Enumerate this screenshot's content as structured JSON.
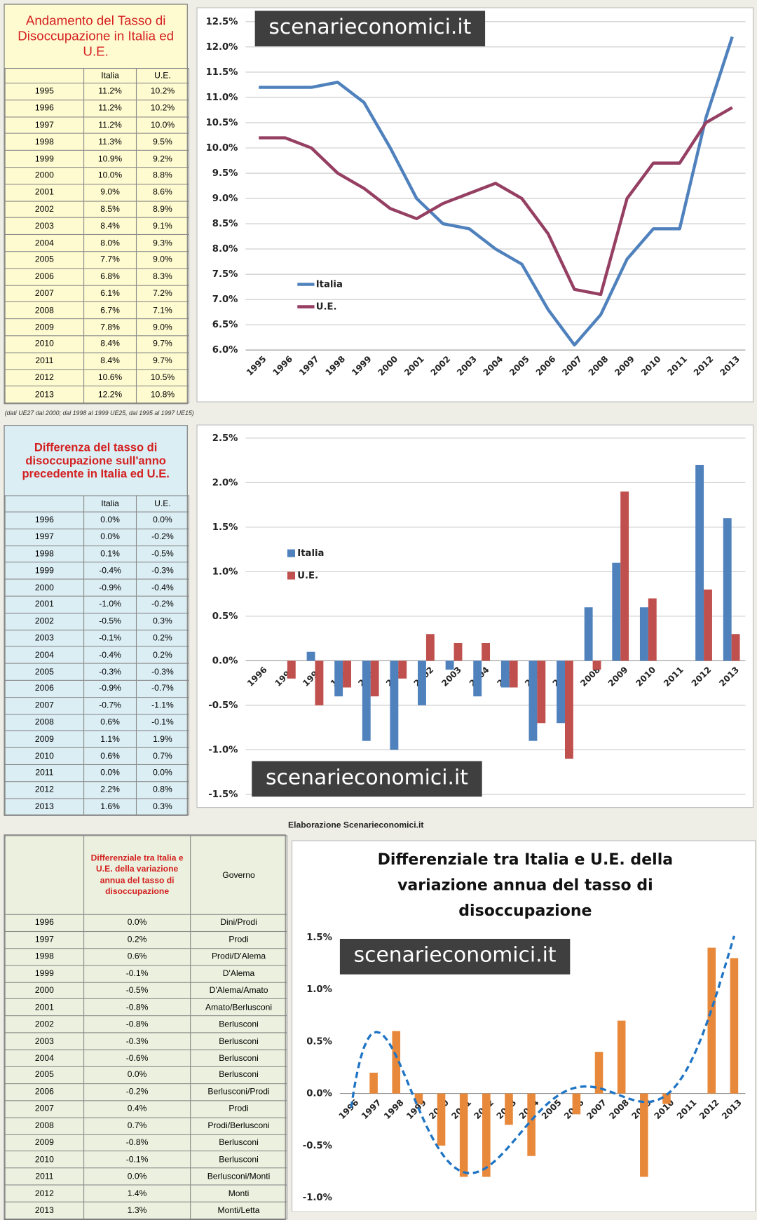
{
  "tables": [
    {
      "title": "Andamento del Tasso di Disoccupazione in Italia ed U.E.",
      "columns": [
        "Italia",
        "U.E."
      ],
      "rows": [
        [
          "1995",
          "11.2%",
          "10.2%"
        ],
        [
          "1996",
          "11.2%",
          "10.2%"
        ],
        [
          "1997",
          "11.2%",
          "10.0%"
        ],
        [
          "1998",
          "11.3%",
          "9.5%"
        ],
        [
          "1999",
          "10.9%",
          "9.2%"
        ],
        [
          "2000",
          "10.0%",
          "8.8%"
        ],
        [
          "2001",
          "9.0%",
          "8.6%"
        ],
        [
          "2002",
          "8.5%",
          "8.9%"
        ],
        [
          "2003",
          "8.4%",
          "9.1%"
        ],
        [
          "2004",
          "8.0%",
          "9.3%"
        ],
        [
          "2005",
          "7.7%",
          "9.0%"
        ],
        [
          "2006",
          "6.8%",
          "8.3%"
        ],
        [
          "2007",
          "6.1%",
          "7.2%"
        ],
        [
          "2008",
          "6.7%",
          "7.1%"
        ],
        [
          "2009",
          "7.8%",
          "9.0%"
        ],
        [
          "2010",
          "8.4%",
          "9.7%"
        ],
        [
          "2011",
          "8.4%",
          "9.7%"
        ],
        [
          "2012",
          "10.6%",
          "10.5%"
        ],
        [
          "2013",
          "12.2%",
          "10.8%"
        ]
      ]
    },
    {
      "title": "Differenza del tasso di disoccupazione sull'anno precedente in Italia ed U.E.",
      "columns": [
        "Italia",
        "U.E."
      ],
      "rows": [
        [
          "1996",
          "0.0%",
          "0.0%"
        ],
        [
          "1997",
          "0.0%",
          "-0.2%"
        ],
        [
          "1998",
          "0.1%",
          "-0.5%"
        ],
        [
          "1999",
          "-0.4%",
          "-0.3%"
        ],
        [
          "2000",
          "-0.9%",
          "-0.4%"
        ],
        [
          "2001",
          "-1.0%",
          "-0.2%"
        ],
        [
          "2002",
          "-0.5%",
          "0.3%"
        ],
        [
          "2003",
          "-0.1%",
          "0.2%"
        ],
        [
          "2004",
          "-0.4%",
          "0.2%"
        ],
        [
          "2005",
          "-0.3%",
          "-0.3%"
        ],
        [
          "2006",
          "-0.9%",
          "-0.7%"
        ],
        [
          "2007",
          "-0.7%",
          "-1.1%"
        ],
        [
          "2008",
          "0.6%",
          "-0.1%"
        ],
        [
          "2009",
          "1.1%",
          "1.9%"
        ],
        [
          "2010",
          "0.6%",
          "0.7%"
        ],
        [
          "2011",
          "0.0%",
          "0.0%"
        ],
        [
          "2012",
          "2.2%",
          "0.8%"
        ],
        [
          "2013",
          "1.6%",
          "0.3%"
        ]
      ]
    },
    {
      "columns": [
        "Differenziale tra Italia e U.E. della variazione annua del tasso di disoccupazione",
        "Governo"
      ],
      "rows": [
        [
          "1996",
          "0.0%",
          "Dini/Prodi"
        ],
        [
          "1997",
          "0.2%",
          "Prodi"
        ],
        [
          "1998",
          "0.6%",
          "Prodi/D'Alema"
        ],
        [
          "1999",
          "-0.1%",
          "D'Alema"
        ],
        [
          "2000",
          "-0.5%",
          "D'Alema/Amato"
        ],
        [
          "2001",
          "-0.8%",
          "Amato/Berlusconi"
        ],
        [
          "2002",
          "-0.8%",
          "Berlusconi"
        ],
        [
          "2003",
          "-0.3%",
          "Berlusconi"
        ],
        [
          "2004",
          "-0.6%",
          "Berlusconi"
        ],
        [
          "2005",
          "0.0%",
          "Berlusconi"
        ],
        [
          "2006",
          "-0.2%",
          "Berlusconi/Prodi"
        ],
        [
          "2007",
          "0.4%",
          "Prodi"
        ],
        [
          "2008",
          "0.7%",
          "Prodi/Berlusconi"
        ],
        [
          "2009",
          "-0.8%",
          "Berlusconi"
        ],
        [
          "2010",
          "-0.1%",
          "Berlusconi"
        ],
        [
          "2011",
          "0.0%",
          "Berlusconi/Monti"
        ],
        [
          "2012",
          "1.4%",
          "Monti"
        ],
        [
          "2013",
          "1.3%",
          "Monti/Letta"
        ]
      ]
    }
  ],
  "note": "(dati UE27 dal 2000; dal 1998 al 1999 UE25, dal 1995 al 1997 UE15)",
  "credit": "Elaborazione Scenarieconomici.it",
  "chart_data": [
    {
      "type": "line",
      "watermark": "scenarieconomici.it",
      "categories": [
        "1995",
        "1996",
        "1997",
        "1998",
        "1999",
        "2000",
        "2001",
        "2002",
        "2003",
        "2004",
        "2005",
        "2006",
        "2007",
        "2008",
        "2009",
        "2010",
        "2011",
        "2012",
        "2013"
      ],
      "series": [
        {
          "name": "Italia",
          "color": "#4f81bd",
          "values": [
            11.2,
            11.2,
            11.2,
            11.3,
            10.9,
            10.0,
            9.0,
            8.5,
            8.4,
            8.0,
            7.7,
            6.8,
            6.1,
            6.7,
            7.8,
            8.4,
            8.4,
            10.6,
            12.2
          ]
        },
        {
          "name": "U.E.",
          "color": "#953f62",
          "values": [
            10.2,
            10.2,
            10.0,
            9.5,
            9.2,
            8.8,
            8.6,
            8.9,
            9.1,
            9.3,
            9.0,
            8.3,
            7.2,
            7.1,
            9.0,
            9.7,
            9.7,
            10.5,
            10.8
          ]
        }
      ],
      "ylim": [
        6,
        12.5
      ],
      "yticks": [
        {
          "value": 6,
          "label": "6.0%"
        },
        {
          "value": 6.5,
          "label": "6.5%"
        },
        {
          "value": 7,
          "label": "7.0%"
        },
        {
          "value": 7.5,
          "label": "7.5%"
        },
        {
          "value": 8,
          "label": "8.0%"
        },
        {
          "value": 8.5,
          "label": "8.5%"
        },
        {
          "value": 9,
          "label": "9.0%"
        },
        {
          "value": 9.5,
          "label": "9.5%"
        },
        {
          "value": 10,
          "label": "10.0%"
        },
        {
          "value": 10.5,
          "label": "10.5%"
        },
        {
          "value": 11,
          "label": "11.0%"
        },
        {
          "value": 11.5,
          "label": "11.5%"
        },
        {
          "value": 12,
          "label": "12.0%"
        },
        {
          "value": 12.5,
          "label": "12.5%"
        }
      ],
      "grid": true,
      "legend": "left"
    },
    {
      "type": "bar",
      "watermark": "scenarieconomici.it",
      "categories": [
        "1996",
        "1997",
        "1998",
        "1999",
        "2000",
        "2001",
        "2002",
        "2003",
        "2004",
        "2005",
        "2006",
        "2007",
        "2008",
        "2009",
        "2010",
        "2011",
        "2012",
        "2013"
      ],
      "series": [
        {
          "name": "Italia",
          "color": "#4f81bd",
          "values": [
            0.0,
            0.0,
            0.1,
            -0.4,
            -0.9,
            -1.0,
            -0.5,
            -0.1,
            -0.4,
            -0.3,
            -0.9,
            -0.7,
            0.6,
            1.1,
            0.6,
            0.0,
            2.2,
            1.6
          ]
        },
        {
          "name": "U.E.",
          "color": "#c0504d",
          "values": [
            0.0,
            -0.2,
            -0.5,
            -0.3,
            -0.4,
            -0.2,
            0.3,
            0.2,
            0.2,
            -0.3,
            -0.7,
            -1.1,
            -0.1,
            1.9,
            0.7,
            0.0,
            0.8,
            0.3
          ]
        }
      ],
      "ylim": [
        -1.5,
        2.5
      ],
      "yticks": [
        {
          "value": -1.5,
          "label": "-1.5%"
        },
        {
          "value": -1,
          "label": "-1.0%"
        },
        {
          "value": -0.5,
          "label": "-0.5%"
        },
        {
          "value": 0,
          "label": "0.0%"
        },
        {
          "value": 0.5,
          "label": "0.5%"
        },
        {
          "value": 1,
          "label": "1.0%"
        },
        {
          "value": 1.5,
          "label": "1.5%"
        },
        {
          "value": 2,
          "label": "2.0%"
        },
        {
          "value": 2.5,
          "label": "2.5%"
        }
      ],
      "grid": true,
      "legend": "left"
    },
    {
      "type": "bar",
      "title": "Differenziale tra Italia e U.E. della variazione annua del tasso di disoccupazione",
      "watermark": "scenarieconomici.it",
      "categories": [
        "1996",
        "1997",
        "1998",
        "1999",
        "2000",
        "2001",
        "2002",
        "2003",
        "2004",
        "2005",
        "2006",
        "2007",
        "2008",
        "2009",
        "2010",
        "2011",
        "2012",
        "2013"
      ],
      "values": [
        0.0,
        0.2,
        0.6,
        -0.1,
        -0.5,
        -0.8,
        -0.8,
        -0.3,
        -0.6,
        0.0,
        -0.2,
        0.4,
        0.7,
        -0.8,
        -0.1,
        0.0,
        1.4,
        1.3
      ],
      "color": "#e8883a",
      "trendline": {
        "type": "polynomial",
        "order": 6,
        "color": "#1f74c4",
        "style": "dashed"
      },
      "ylim": [
        -1,
        1.5
      ],
      "yticks": [
        {
          "value": -1,
          "label": "-1.0%"
        },
        {
          "value": -0.5,
          "label": "-0.5%"
        },
        {
          "value": 0,
          "label": "0.0%"
        },
        {
          "value": 0.5,
          "label": "0.5%"
        },
        {
          "value": 1,
          "label": "1.0%"
        },
        {
          "value": 1.5,
          "label": "1.5%"
        }
      ],
      "grid": false
    }
  ]
}
